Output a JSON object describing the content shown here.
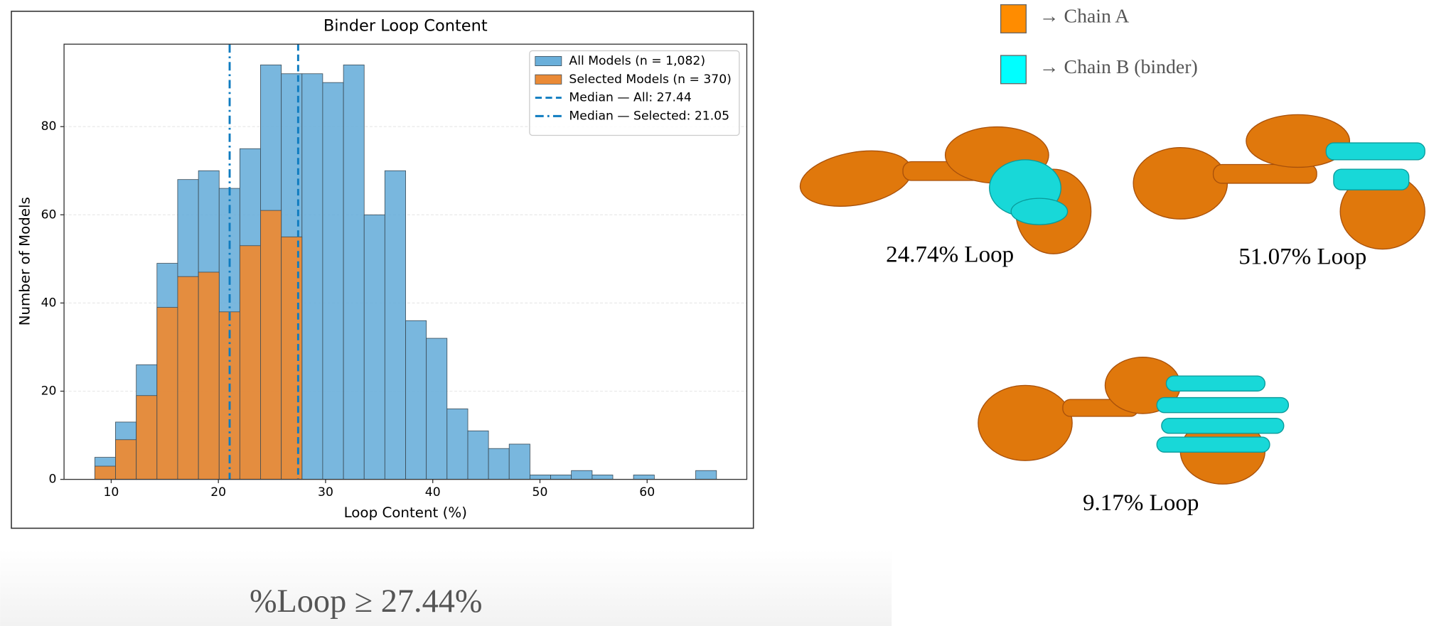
{
  "chart_data": {
    "type": "histogram",
    "title": "Binder Loop Content",
    "x_label": "Loop Content (%)",
    "y_label": "Number of Models",
    "bins": [
      8.47,
      10.4,
      12.34,
      14.27,
      16.2,
      18.14,
      20.07,
      22.0,
      23.93,
      25.87,
      27.8,
      29.73,
      31.67,
      33.6,
      35.53,
      37.47,
      39.4,
      41.33,
      43.27,
      45.2,
      47.13,
      49.07,
      51.0,
      52.93,
      54.87,
      56.8,
      58.73,
      60.67,
      62.6,
      64.53,
      66.47
    ],
    "series": [
      {
        "name": "All Models (n = 1,082)",
        "color": "#6aafda",
        "values": [
          5,
          13,
          26,
          49,
          68,
          70,
          66,
          75,
          94,
          92,
          92,
          90,
          94,
          60,
          70,
          36,
          32,
          16,
          11,
          7,
          8,
          1,
          1,
          2,
          1,
          0,
          1,
          0,
          0,
          2
        ]
      },
      {
        "name": "Selected Models (n = 370)",
        "color": "#ea8a36",
        "values": [
          3,
          9,
          19,
          39,
          46,
          47,
          38,
          53,
          61,
          55,
          0,
          0,
          0,
          0,
          0,
          0,
          0,
          0,
          0,
          0,
          0,
          0,
          0,
          0,
          0,
          0,
          0,
          0,
          0,
          0
        ]
      }
    ],
    "reference_lines": [
      {
        "name": "Median — All: 27.44",
        "value": 27.44,
        "color": "#0f7cc0",
        "style": "dashed"
      },
      {
        "name": "Median — Selected: 21.05",
        "value": 21.05,
        "color": "#0f7cc0",
        "style": "dashdot"
      }
    ],
    "xlim": [
      5.6,
      69.3
    ],
    "ylim": [
      0,
      98.7
    ],
    "xticks": [
      10,
      20,
      30,
      40,
      50,
      60
    ],
    "yticks": [
      0,
      20,
      40,
      60,
      80
    ],
    "grid": true,
    "legend_position": "upper right"
  },
  "chain_legend": [
    {
      "label": "→ Chain A",
      "color": "#ff8c00"
    },
    {
      "label": "→ Chain B (binder)",
      "color": "#00ffff"
    }
  ],
  "structures": [
    {
      "label": "24.74% Loop"
    },
    {
      "label": "51.07% Loop"
    },
    {
      "label": "9.17% Loop"
    }
  ],
  "caption": "%Loop ≥ 27.44%"
}
